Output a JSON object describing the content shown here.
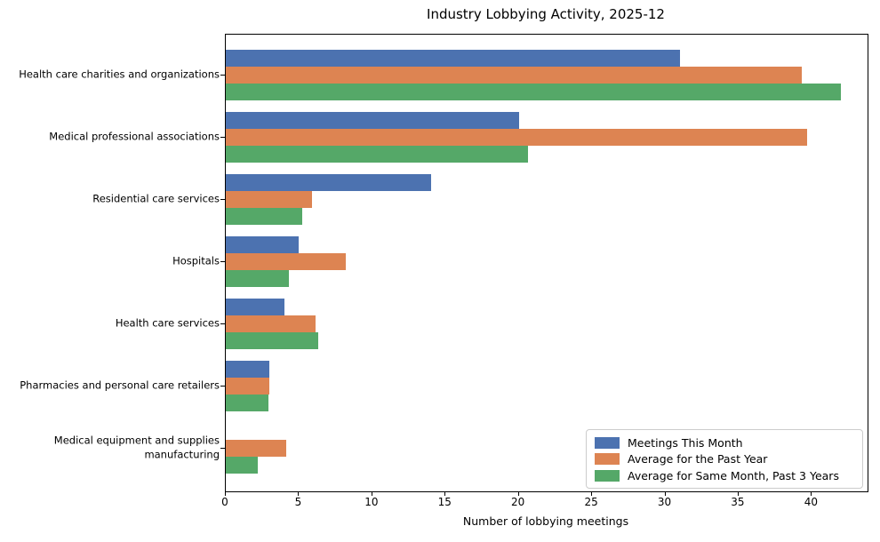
{
  "chart_data": {
    "type": "bar",
    "orientation": "horizontal",
    "title": "Industry Lobbying Activity, 2025-12",
    "xlabel": "Number of lobbying meetings",
    "ylabel": "",
    "xlim": [
      0,
      43.8
    ],
    "xticks": [
      0,
      5,
      10,
      15,
      20,
      25,
      30,
      35,
      40
    ],
    "grid": false,
    "legend_position": "lower right",
    "categories": [
      "Health care charities and organizations",
      "Medical professional associations",
      "Residential care services",
      "Hospitals",
      "Health care services",
      "Pharmacies and personal care retailers",
      "Medical equipment and supplies manufacturing"
    ],
    "series": [
      {
        "name": "Meetings This Month",
        "color": "#4C72B0",
        "values": [
          31,
          20,
          14,
          5,
          4,
          3,
          0
        ]
      },
      {
        "name": "Average for the Past Year",
        "color": "#DD8452",
        "values": [
          39.3,
          39.7,
          5.9,
          8.2,
          6.1,
          3.0,
          4.1
        ]
      },
      {
        "name": "Average for Same Month, Past 3 Years",
        "color": "#55A868",
        "values": [
          42.0,
          20.6,
          5.2,
          4.3,
          6.3,
          2.9,
          2.2
        ]
      }
    ]
  }
}
